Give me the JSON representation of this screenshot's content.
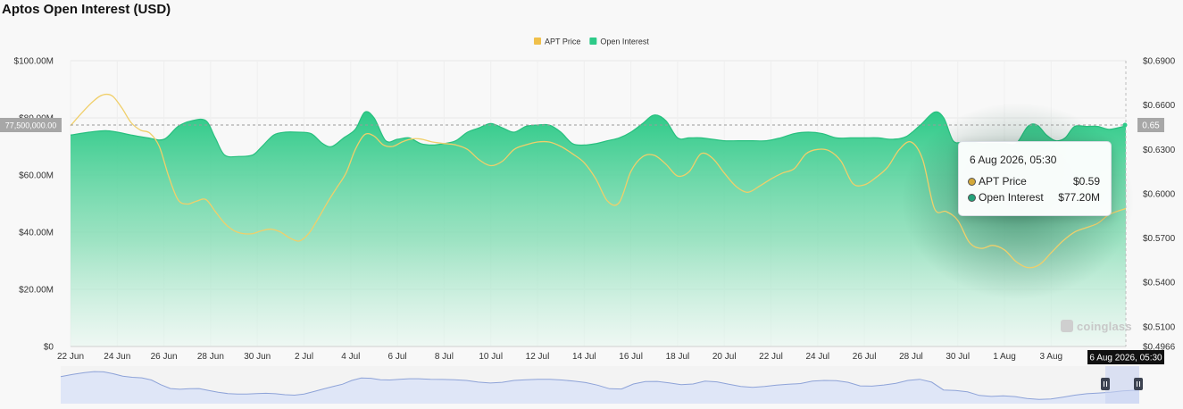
{
  "page": {
    "title": "Aptos Open Interest (USD)"
  },
  "legend": [
    {
      "name": "APT Price",
      "color": "#f0c04a"
    },
    {
      "name": "Open Interest",
      "color": "#2dca88"
    }
  ],
  "tooltip": {
    "date": "6 Aug 2026, 05:30",
    "rows": [
      {
        "label": "APT Price",
        "value": "$0.59",
        "color": "#d4a93a"
      },
      {
        "label": "Open Interest",
        "value": "$77.20M",
        "color": "#22a27a"
      }
    ]
  },
  "crosshair": {
    "y_label": "77,500,000.00",
    "y_value": 77500000,
    "right_label": "0.65",
    "x_label": "6 Aug 2026, 05:30"
  },
  "watermark": "coinglass",
  "chart_data": {
    "type": "area",
    "title": "Aptos Open Interest (USD)",
    "x_ticks": [
      "22 Jun",
      "24 Jun",
      "26 Jun",
      "28 Jun",
      "30 Jun",
      "2 Jul",
      "4 Jul",
      "6 Jul",
      "8 Jul",
      "10 Jul",
      "12 Jul",
      "14 Jul",
      "16 Jul",
      "18 Jul",
      "20 Jul",
      "22 Jul",
      "24 Jul",
      "26 Jul",
      "28 Jul",
      "30 Jul",
      "1 Aug",
      "3 Aug"
    ],
    "x_range": [
      0,
      45.2
    ],
    "y_left": {
      "ticks": [
        "$0",
        "$20.00M",
        "$40.00M",
        "$60.00M",
        "$80.00M",
        "$100.00M"
      ],
      "tick_values": [
        0,
        20000000,
        40000000,
        60000000,
        80000000,
        100000000
      ],
      "range": [
        0,
        100000000
      ]
    },
    "y_right": {
      "ticks": [
        "$0.4966",
        "$0.5100",
        "$0.5400",
        "$0.5700",
        "$0.6000",
        "$0.6300",
        "$0.6600",
        "$0.6900"
      ],
      "tick_values": [
        0.4966,
        0.51,
        0.54,
        0.57,
        0.6,
        0.63,
        0.66,
        0.69
      ],
      "range": [
        0.4966,
        0.69
      ]
    },
    "grid": true,
    "legend_position": "top-center",
    "series": [
      {
        "name": "Open Interest",
        "axis": "left",
        "x": [
          0,
          0.8,
          1.5,
          2,
          2.6,
          3.3,
          4,
          4.6,
          5.2,
          5.8,
          6.2,
          6.6,
          7.2,
          7.8,
          8.2,
          8.7,
          9.2,
          9.7,
          10.3,
          10.8,
          11.2,
          11.7,
          12.2,
          12.6,
          13,
          13.5,
          14,
          14.5,
          15,
          15.5,
          16,
          16.5,
          17,
          17.5,
          18,
          18.5,
          19,
          19.5,
          20,
          20.5,
          21,
          21.5,
          22,
          22.5,
          23,
          23.5,
          24,
          24.5,
          25,
          25.5,
          26,
          26.5,
          27,
          27.5,
          28,
          28.6,
          29.2,
          29.8,
          30.4,
          31,
          31.6,
          32.2,
          32.8,
          33.4,
          34,
          34.6,
          35.2,
          35.8,
          36.4,
          37,
          37.4,
          37.8,
          38.2,
          38.6,
          39,
          39.5,
          40,
          40.5,
          41,
          41.4,
          41.8,
          42.2,
          42.6,
          43,
          43.5,
          44,
          44.5,
          45.2
        ],
        "y": [
          74,
          75,
          75.5,
          75,
          74,
          73,
          72.5,
          77,
          79,
          79,
          73,
          67,
          66.5,
          67,
          70,
          74,
          75,
          75,
          74.5,
          71,
          70,
          73,
          76,
          82,
          80,
          72,
          72.5,
          73,
          71,
          70.5,
          71,
          72,
          75,
          76.5,
          78,
          76.5,
          75,
          77,
          77.5,
          77.5,
          75,
          71,
          70.5,
          71,
          72,
          73,
          75,
          78,
          81,
          79,
          73,
          73,
          73,
          72.5,
          72,
          72,
          72,
          72,
          73,
          74.5,
          75,
          74.5,
          73,
          73,
          73,
          73,
          72.5,
          73.5,
          77.5,
          82,
          80,
          72,
          71.5,
          71.5,
          71,
          71,
          71,
          71,
          77,
          77.5,
          74,
          72,
          73,
          77,
          77,
          77,
          76,
          77.2
        ]
      },
      {
        "name": "APT Price",
        "axis": "right",
        "x": [
          0,
          0.5,
          1,
          1.4,
          1.8,
          2.2,
          2.6,
          3,
          3.4,
          3.8,
          4.2,
          4.6,
          5,
          5.4,
          5.8,
          6.2,
          6.6,
          7,
          7.4,
          7.8,
          8.2,
          8.6,
          9,
          9.4,
          9.8,
          10.2,
          10.6,
          11,
          11.4,
          11.8,
          12.2,
          12.6,
          13,
          13.4,
          13.8,
          14.2,
          14.6,
          15,
          15.5,
          16,
          16.5,
          17,
          17.5,
          18,
          18.5,
          19,
          19.5,
          20,
          20.5,
          21,
          21.5,
          22,
          22.5,
          23,
          23.5,
          24,
          24.5,
          25,
          25.5,
          26,
          26.5,
          27,
          27.5,
          28,
          28.5,
          29,
          29.5,
          30,
          30.5,
          31,
          31.5,
          32,
          32.5,
          33,
          33.5,
          34,
          34.5,
          35,
          35.5,
          36,
          36.5,
          37,
          37.5,
          38,
          38.5,
          39,
          39.5,
          40,
          40.5,
          41,
          41.5,
          42,
          42.5,
          43,
          43.5,
          44,
          44.5,
          45.2
        ],
        "y": [
          0.646,
          0.655,
          0.663,
          0.667,
          0.666,
          0.658,
          0.648,
          0.643,
          0.641,
          0.632,
          0.612,
          0.596,
          0.593,
          0.595,
          0.596,
          0.588,
          0.58,
          0.575,
          0.573,
          0.573,
          0.575,
          0.576,
          0.574,
          0.57,
          0.568,
          0.573,
          0.583,
          0.594,
          0.604,
          0.614,
          0.63,
          0.64,
          0.639,
          0.633,
          0.632,
          0.635,
          0.637,
          0.637,
          0.635,
          0.634,
          0.633,
          0.63,
          0.623,
          0.619,
          0.622,
          0.63,
          0.633,
          0.635,
          0.635,
          0.632,
          0.627,
          0.621,
          0.61,
          0.595,
          0.594,
          0.615,
          0.625,
          0.626,
          0.62,
          0.612,
          0.615,
          0.627,
          0.624,
          0.614,
          0.605,
          0.601,
          0.605,
          0.61,
          0.614,
          0.617,
          0.627,
          0.63,
          0.629,
          0.622,
          0.607,
          0.606,
          0.611,
          0.618,
          0.63,
          0.635,
          0.623,
          0.59,
          0.588,
          0.582,
          0.567,
          0.563,
          0.565,
          0.562,
          0.554,
          0.55,
          0.552,
          0.56,
          0.568,
          0.574,
          0.577,
          0.58,
          0.586,
          0.59
        ]
      }
    ]
  }
}
